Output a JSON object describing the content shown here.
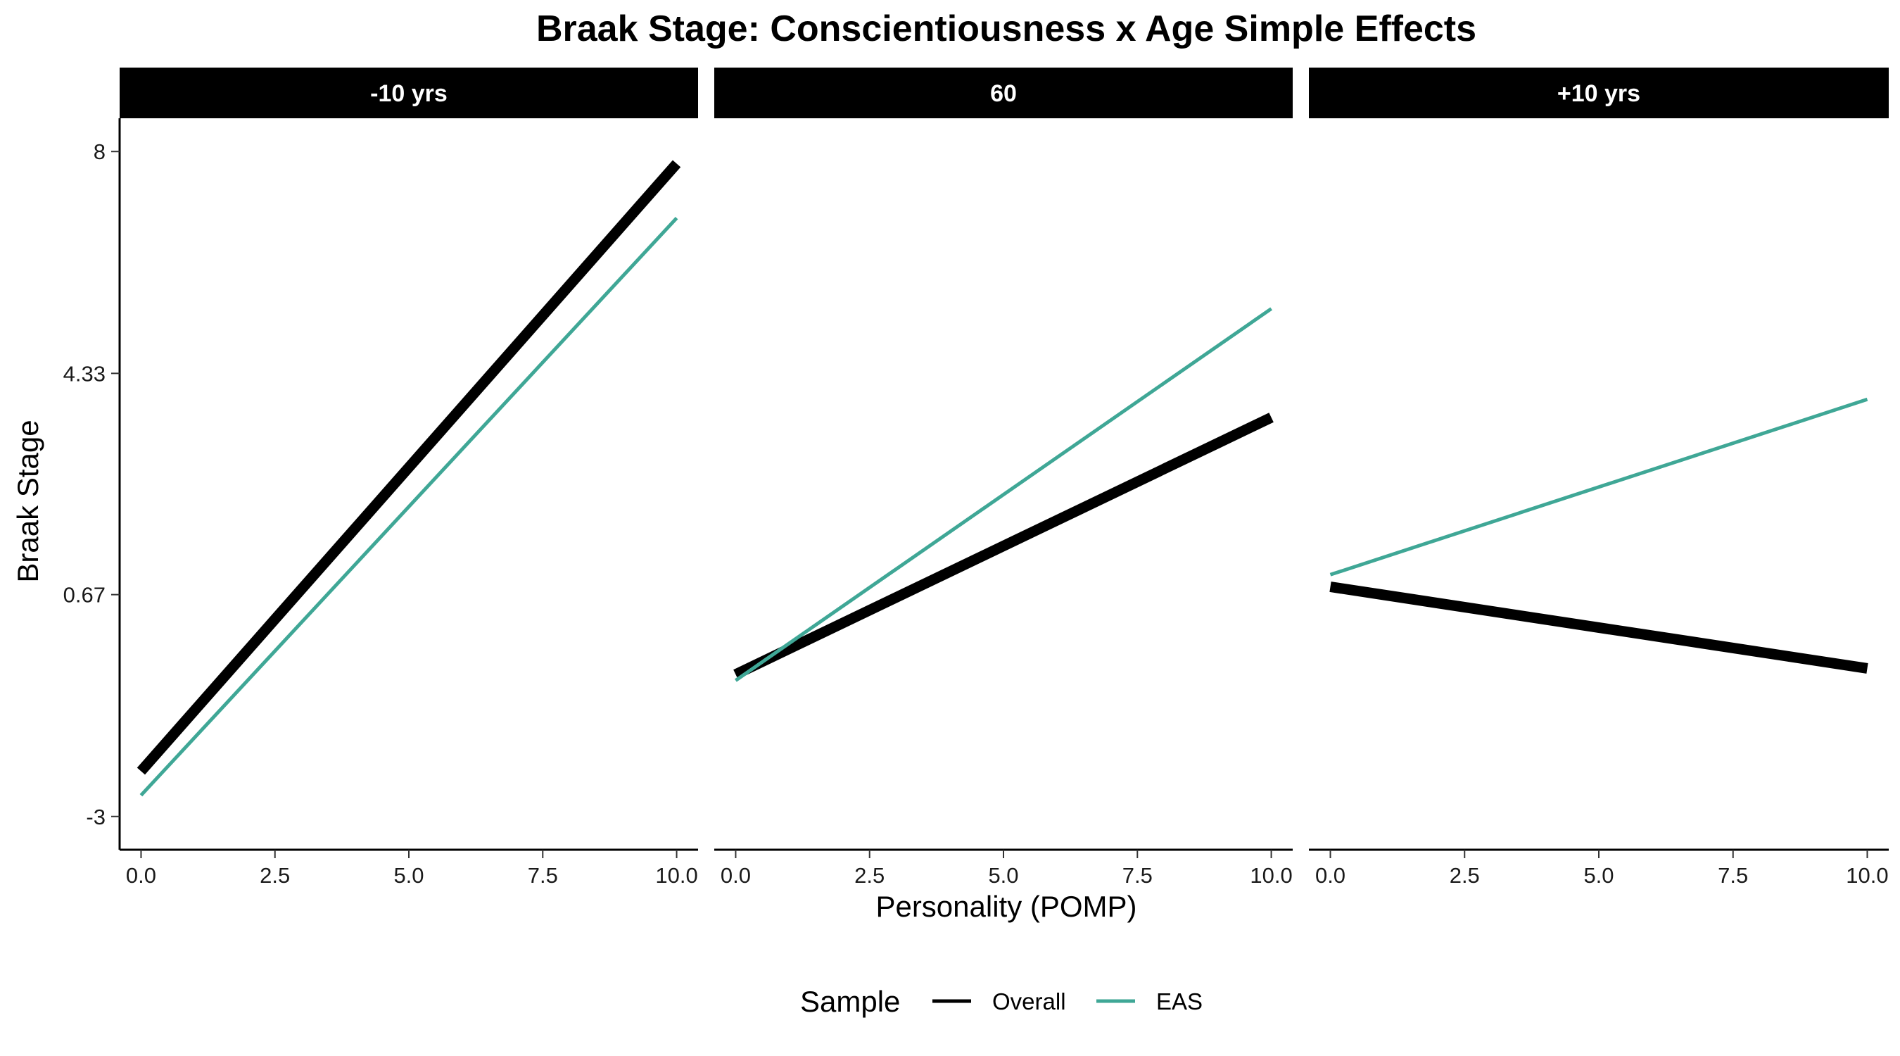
{
  "chart_data": {
    "type": "line",
    "title": "Braak Stage: Conscientiousness x Age Simple Effects",
    "xlabel": "Personality (POMP)",
    "ylabel": "Braak Stage",
    "xlim": [
      -0.4,
      10.4
    ],
    "ylim": [
      -3.55,
      8.55
    ],
    "x_ticks": [
      0,
      2.5,
      5,
      7.5,
      10
    ],
    "x_tick_labels": [
      "0.0",
      "2.5",
      "5.0",
      "7.5",
      "10.0"
    ],
    "y_ticks": [
      -3,
      0.67,
      4.33,
      8
    ],
    "y_tick_labels": [
      "-3",
      "0.67",
      "4.33",
      "8"
    ],
    "grid": false,
    "legend": {
      "title": "Sample",
      "position": "bottom",
      "entries": [
        "Overall",
        "EAS"
      ]
    },
    "series_style": {
      "Overall": {
        "color": "#000000",
        "width": 15
      },
      "EAS": {
        "color": "#3fa796",
        "width": 5
      }
    },
    "facets": [
      {
        "label": "-10 yrs",
        "series": [
          {
            "name": "Overall",
            "x": [
              0,
              10
            ],
            "y": [
              -2.25,
              7.8
            ]
          },
          {
            "name": "EAS",
            "x": [
              0,
              10
            ],
            "y": [
              -2.65,
              6.9
            ]
          }
        ]
      },
      {
        "label": "60",
        "series": [
          {
            "name": "Overall",
            "x": [
              0,
              10
            ],
            "y": [
              -0.65,
              3.6
            ]
          },
          {
            "name": "EAS",
            "x": [
              0,
              10
            ],
            "y": [
              -0.75,
              5.4
            ]
          }
        ]
      },
      {
        "label": "+10 yrs",
        "series": [
          {
            "name": "Overall",
            "x": [
              0,
              10
            ],
            "y": [
              0.8,
              -0.55
            ]
          },
          {
            "name": "EAS",
            "x": [
              0,
              10
            ],
            "y": [
              1.0,
              3.9
            ]
          }
        ]
      }
    ]
  }
}
